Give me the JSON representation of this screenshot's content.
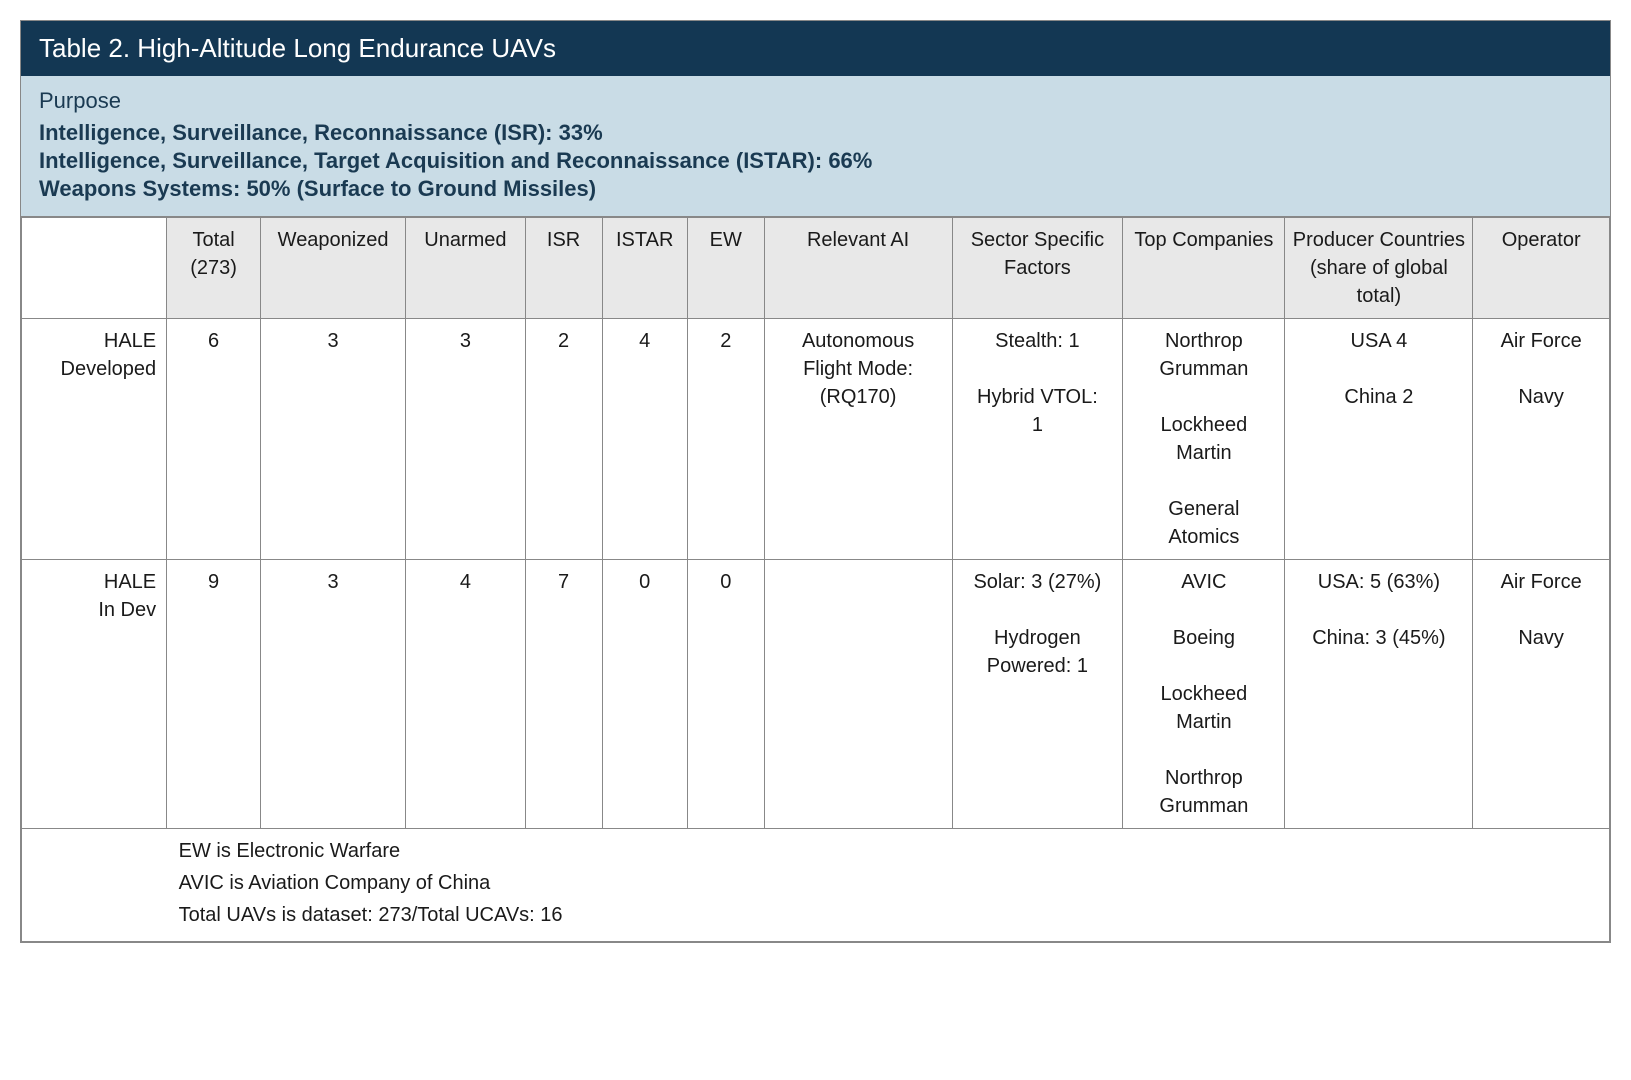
{
  "colors": {
    "title_bg": "#133753",
    "title_text": "#ffffff",
    "purpose_bg": "#c9dce6",
    "purpose_text": "#1a3a52",
    "header_bg": "#e8e8e8",
    "border": "#888888",
    "body_text": "#1a1a1a"
  },
  "title": "Table 2. High-Altitude Long Endurance UAVs",
  "purpose": {
    "label": "Purpose",
    "items": [
      "Intelligence, Surveillance, Reconnaissance (ISR): 33%",
      "Intelligence, Surveillance, Target Acquisition and Reconnaissance (ISTAR): 66%",
      "Weapons Systems: 50% (Surface to Ground Missiles)"
    ]
  },
  "columns": [
    "",
    "Total\n(273)",
    "Weaponized",
    "Unarmed",
    "ISR",
    "ISTAR",
    "EW",
    "Relevant AI",
    "Sector\nSpecific\nFactors",
    "Top\nCompanies",
    "Producer\nCountries\n(share of\nglobal total)",
    "Operator"
  ],
  "rows": [
    {
      "header": "HALE\nDeveloped",
      "total": "6",
      "weaponized": "3",
      "unarmed": "3",
      "isr": "2",
      "istar": "4",
      "ew": "2",
      "ai": "Autonomous\nFlight Mode:\n(RQ170)",
      "sector": "Stealth: 1\n\nHybrid VTOL:\n1",
      "companies": "Northrop\nGrumman\n\nLockheed\nMartin\n\nGeneral\nAtomics",
      "producer": "USA 4\n\nChina 2",
      "operator": "Air Force\n\nNavy"
    },
    {
      "header": "HALE\nIn Dev",
      "total": "9",
      "weaponized": "3",
      "unarmed": "4",
      "isr": "7",
      "istar": "0",
      "ew": "0",
      "ai": "",
      "sector": "Solar: 3 (27%)\n\nHydrogen\nPowered: 1",
      "companies": "AVIC\n\nBoeing\n\nLockheed\nMartin\n\nNorthrop\nGrumman",
      "producer": "USA: 5 (63%)\n\nChina: 3 (45%)",
      "operator": "Air Force\n\nNavy"
    }
  ],
  "footnotes": [
    "EW is Electronic Warfare",
    "AVIC is Aviation Company of China",
    "Total UAVs is dataset: 273/Total UCAVs: 16"
  ]
}
